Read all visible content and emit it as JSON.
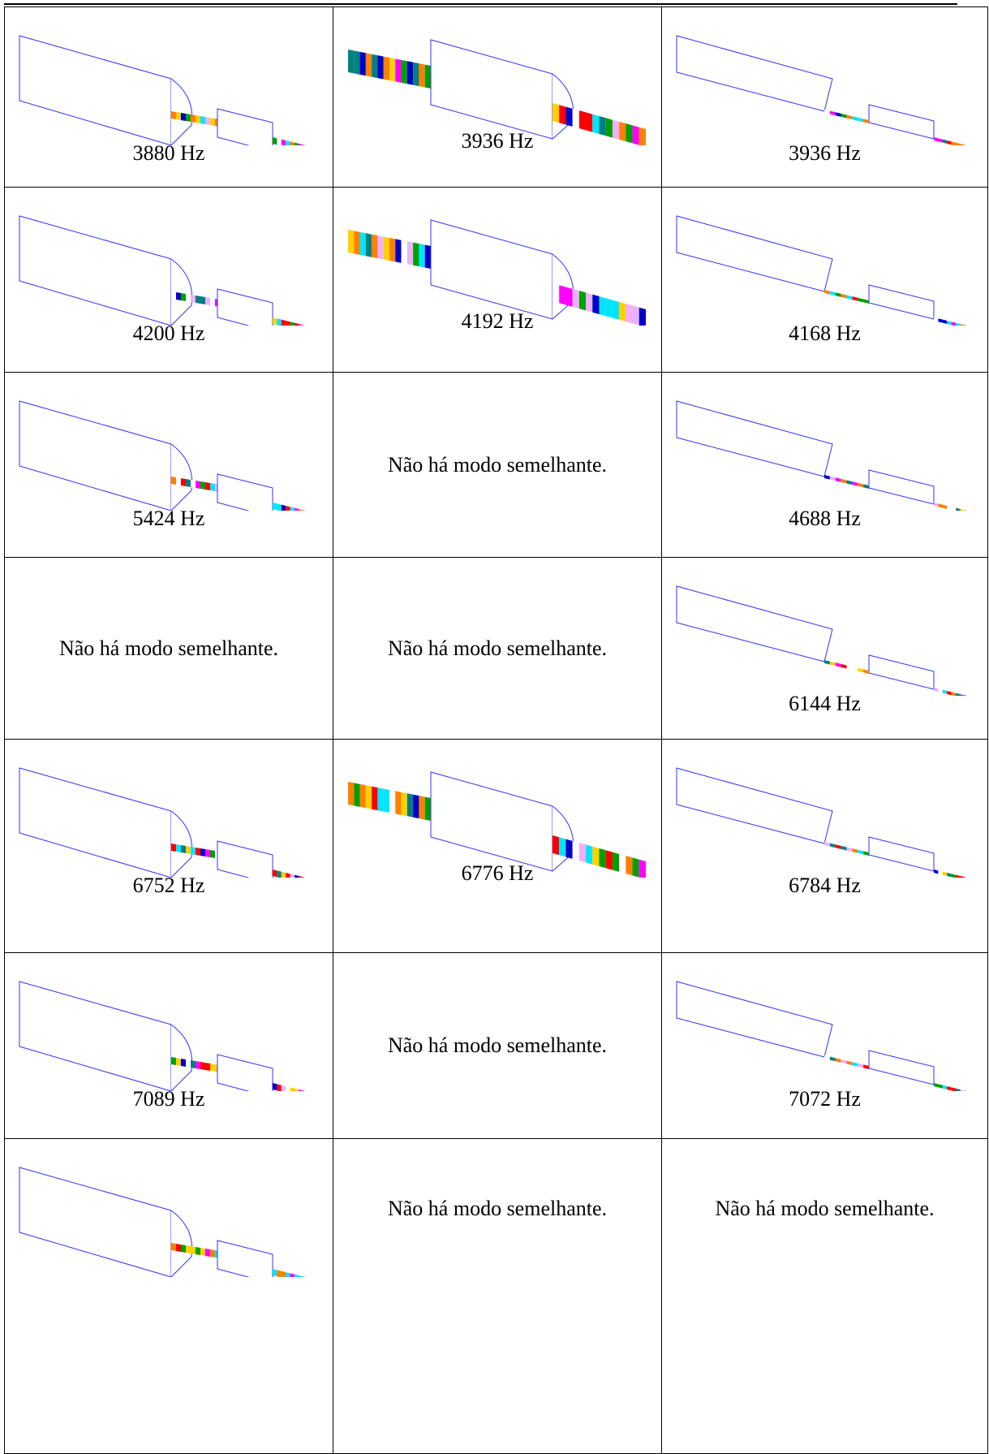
{
  "table": {
    "rows": [
      [
        {
          "caption": "3880 Hz"
        },
        {
          "caption": "3936 Hz"
        },
        {
          "caption": "3936 Hz"
        }
      ],
      [
        {
          "caption": "4200 Hz"
        },
        {
          "caption": "4192 Hz"
        },
        {
          "caption": "4168 Hz"
        }
      ],
      [
        {
          "caption": "5424 Hz"
        },
        {
          "note": "Não há modo semelhante."
        },
        {
          "caption": "4688 Hz"
        }
      ],
      [
        {
          "note": "Não há modo semelhante."
        },
        {
          "note": "Não há modo semelhante."
        },
        {
          "caption": "6144 Hz"
        }
      ],
      [
        {
          "caption": "6752 Hz"
        },
        {
          "caption": "6776 Hz"
        },
        {
          "caption": "6784 Hz"
        }
      ],
      [
        {
          "caption": "7089 Hz"
        },
        {
          "note": "Não há modo semelhante."
        },
        {
          "caption": "7072 Hz"
        }
      ],
      [
        {
          "caption": ""
        },
        {
          "note": "Não há modo semelhante."
        },
        {
          "note": "Não há modo semelhante."
        }
      ]
    ]
  }
}
